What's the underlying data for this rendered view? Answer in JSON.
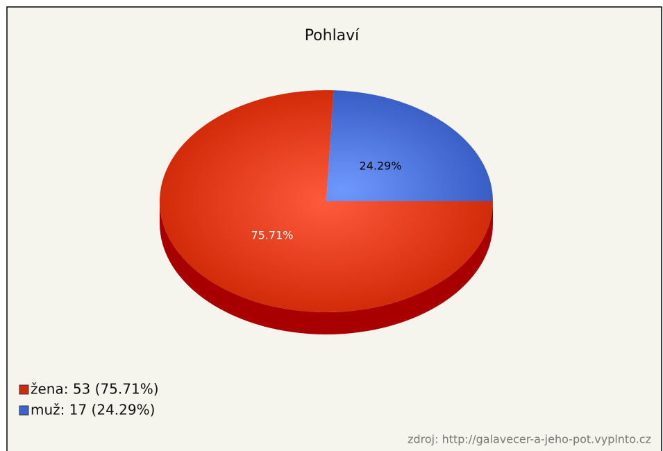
{
  "chart_data": {
    "type": "pie",
    "title": "Pohlaví",
    "categories": [
      "žena",
      "muž"
    ],
    "values": [
      75.71,
      24.29
    ],
    "value_labels": [
      "75.71%",
      "24.29%"
    ],
    "colors": [
      "#d42a0c",
      "#3d63d0"
    ],
    "legend_labels": [
      "žena: 53 (75.71%)",
      "muž: 17 (24.29%)"
    ],
    "legend": "bottom-left",
    "source": "zdroj: http://galavecer-a-jeho-pot.vyplnto.cz"
  }
}
